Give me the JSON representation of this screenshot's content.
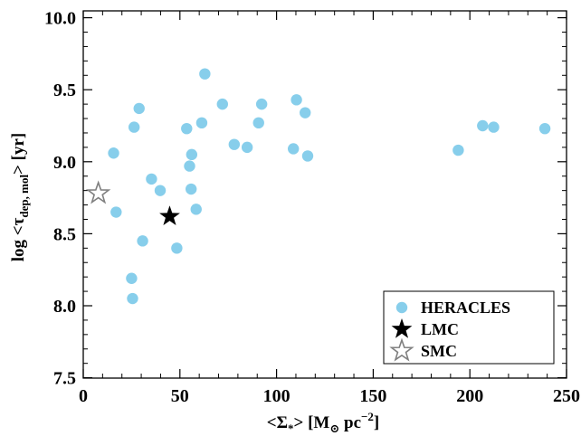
{
  "chart_data": {
    "type": "scatter",
    "xlabel_main": "<Σ",
    "xlabel_sub": "*",
    "xlabel_bracket": "> [M",
    "xlabel_sun": "⊙",
    "xlabel_unit": " pc",
    "xlabel_sup": "−2",
    "xlabel_end": "]",
    "ylabel_main": "log <τ",
    "ylabel_sub": "dep, mol",
    "ylabel_end": "> [yr]",
    "xlim": [
      0,
      250
    ],
    "ylim": [
      7.45,
      10.05
    ],
    "xticks": [
      0,
      50,
      100,
      150,
      200,
      250
    ],
    "xtick_labels": [
      "0",
      "50",
      "100",
      "150",
      "200",
      "250"
    ],
    "yticks": [
      7.5,
      8.0,
      8.5,
      9.0,
      9.5,
      10.0
    ],
    "ytick_labels": [
      "7.5",
      "8.0",
      "8.5",
      "9.0",
      "9.5",
      "10.0"
    ],
    "grid": false,
    "legend_position": "bottom-right",
    "series": [
      {
        "name": "HERACLES",
        "marker": "circle",
        "color": "#87CEEB",
        "points": [
          [
            15.7,
            9.06
          ],
          [
            17.0,
            8.65
          ],
          [
            25.0,
            8.19
          ],
          [
            25.5,
            8.05
          ],
          [
            26.3,
            9.24
          ],
          [
            28.9,
            9.37
          ],
          [
            30.7,
            8.45
          ],
          [
            35.3,
            8.88
          ],
          [
            39.8,
            8.8
          ],
          [
            48.4,
            8.4
          ],
          [
            53.5,
            9.23
          ],
          [
            55.0,
            8.97
          ],
          [
            55.8,
            8.81
          ],
          [
            56.1,
            9.05
          ],
          [
            58.4,
            8.67
          ],
          [
            61.3,
            9.27
          ],
          [
            62.9,
            9.61
          ],
          [
            72.0,
            9.4
          ],
          [
            78.1,
            9.12
          ],
          [
            84.8,
            9.1
          ],
          [
            90.7,
            9.27
          ],
          [
            92.3,
            9.4
          ],
          [
            108.7,
            9.09
          ],
          [
            110.3,
            9.43
          ],
          [
            114.8,
            9.34
          ],
          [
            116.1,
            9.04
          ],
          [
            194.0,
            9.08
          ],
          [
            206.6,
            9.25
          ],
          [
            212.3,
            9.24
          ],
          [
            238.8,
            9.23
          ]
        ]
      },
      {
        "name": "LMC",
        "marker": "filled-star",
        "color": "#000000",
        "points": [
          [
            44.7,
            8.62
          ]
        ]
      },
      {
        "name": "SMC",
        "marker": "open-star",
        "color": "#808080",
        "points": [
          [
            7.8,
            8.78
          ]
        ]
      }
    ]
  }
}
